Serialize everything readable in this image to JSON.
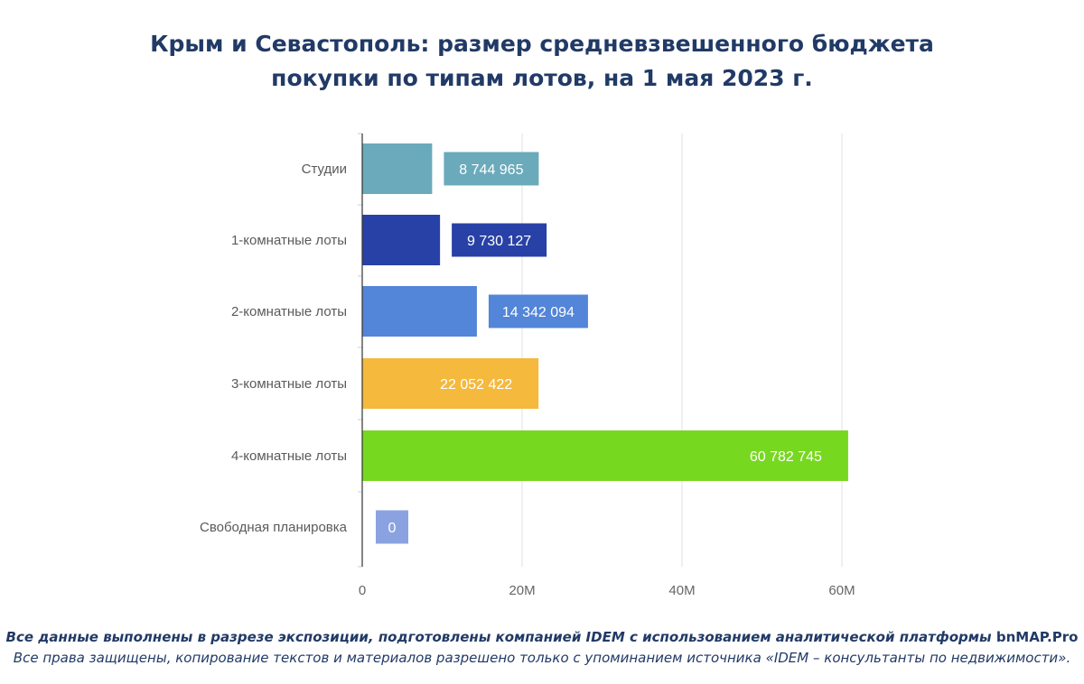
{
  "title": {
    "line1": "Крым и Севастополь: размер средневзвешенного бюджета",
    "line2": "покупки по типам лотов, на 1 мая 2023 г."
  },
  "chart_data": {
    "type": "bar",
    "orientation": "horizontal",
    "categories": [
      "Студии",
      "1-комнатные лоты",
      "2-комнатные лоты",
      "3-комнатные лоты",
      "4-комнатные лоты",
      "Свободная планировка"
    ],
    "values": [
      8744965,
      9730127,
      14342094,
      22052422,
      60782745,
      0
    ],
    "value_labels": [
      "8 744 965",
      "9 730 127",
      "14 342 094",
      "22 052 422",
      "60 782 745",
      "0"
    ],
    "colors": [
      "#6aaabb",
      "#2841a6",
      "#5385d8",
      "#f4b93d",
      "#77d820",
      "#8aa3e0"
    ],
    "xlim": [
      0,
      60000000
    ],
    "xticks": [
      0,
      20000000,
      40000000,
      60000000
    ],
    "xtick_labels": [
      "0",
      "20M",
      "40M",
      "60M"
    ],
    "grid": true,
    "legend": "none"
  },
  "footer": {
    "line1_text": "Все данные выполнены в разрезе экспозиции, подготовлены компанией IDEM с использованием аналитической платформы",
    "line1_brand": "bnMAP.Pro",
    "line2": "Все права защищены, копирование текстов и материалов разрешено только с упоминанием источника «IDEM – консультанты по недвижимости»."
  }
}
